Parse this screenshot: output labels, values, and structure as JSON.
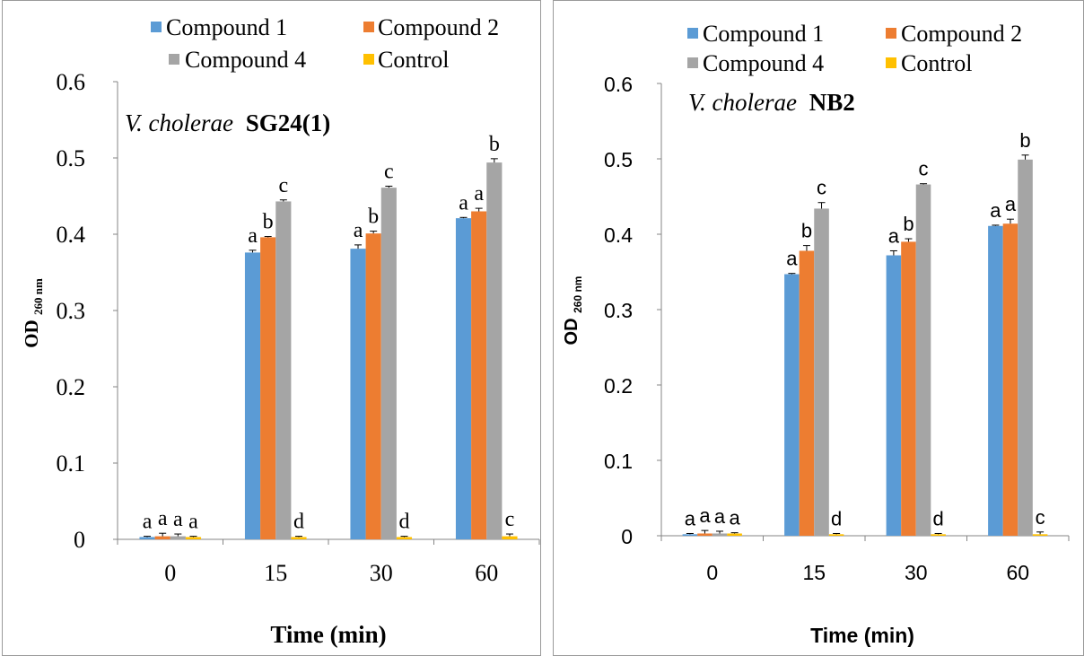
{
  "chart_data": [
    {
      "type": "bar",
      "title_italic": "V. cholerae",
      "title_bold": "SG24(1)",
      "xlabel": "Time (min)",
      "ylabel_main": "OD",
      "ylabel_sub": "260 nm",
      "categories": [
        "0",
        "15",
        "30",
        "60"
      ],
      "ylim": [
        0,
        0.6
      ],
      "yticks": [
        "0",
        "0.1",
        "0.2",
        "0.3",
        "0.4",
        "0.5",
        "0.6"
      ],
      "grid": false,
      "legend_position": "top",
      "series": [
        {
          "name": "Compound 1",
          "color": "#5b9bd5",
          "values": [
            0.003,
            0.376,
            0.381,
            0.421
          ],
          "errors": [
            0.001,
            0.003,
            0.005,
            0.001
          ],
          "letters": [
            "a",
            "a",
            "a",
            "a"
          ]
        },
        {
          "name": "Compound 2",
          "color": "#ed7d31",
          "values": [
            0.004,
            0.396,
            0.401,
            0.43
          ],
          "errors": [
            0.004,
            0.001,
            0.003,
            0.004
          ],
          "letters": [
            "a",
            "b",
            "b",
            "a"
          ]
        },
        {
          "name": "Compound 4",
          "color": "#a5a5a5",
          "values": [
            0.004,
            0.443,
            0.461,
            0.494
          ],
          "errors": [
            0.003,
            0.002,
            0.002,
            0.005
          ],
          "letters": [
            "a",
            "c",
            "c",
            "b"
          ]
        },
        {
          "name": "Control",
          "color": "#ffc000",
          "values": [
            0.003,
            0.003,
            0.003,
            0.004
          ],
          "errors": [
            0.001,
            0.001,
            0.001,
            0.003
          ],
          "letters": [
            "a",
            "d",
            "d",
            "c"
          ]
        }
      ]
    },
    {
      "type": "bar",
      "title_italic": "V. cholerae",
      "title_bold": "NB2",
      "xlabel": "Time (min)",
      "ylabel_main": "OD",
      "ylabel_sub": "260 nm",
      "categories": [
        "0",
        "15",
        "30",
        "60"
      ],
      "ylim": [
        0,
        0.6
      ],
      "yticks": [
        "0",
        "0.1",
        "0.2",
        "0.3",
        "0.4",
        "0.5",
        "0.6"
      ],
      "grid": false,
      "legend_position": "top",
      "series": [
        {
          "name": "Compound 1",
          "color": "#5b9bd5",
          "values": [
            0.002,
            0.347,
            0.372,
            0.411
          ],
          "errors": [
            0.001,
            0.001,
            0.006,
            0.001
          ],
          "letters": [
            "a",
            "a",
            "a",
            "a"
          ]
        },
        {
          "name": "Compound 2",
          "color": "#ed7d31",
          "values": [
            0.003,
            0.378,
            0.39,
            0.414
          ],
          "errors": [
            0.004,
            0.007,
            0.004,
            0.006
          ],
          "letters": [
            "a",
            "b",
            "b",
            "a"
          ]
        },
        {
          "name": "Compound 4",
          "color": "#a5a5a5",
          "values": [
            0.003,
            0.434,
            0.466,
            0.499
          ],
          "errors": [
            0.003,
            0.008,
            0.001,
            0.006
          ],
          "letters": [
            "a",
            "c",
            "c",
            "b"
          ]
        },
        {
          "name": "Control",
          "color": "#ffc000",
          "values": [
            0.003,
            0.002,
            0.002,
            0.002
          ],
          "errors": [
            0.001,
            0.001,
            0.001,
            0.003
          ],
          "letters": [
            "a",
            "d",
            "d",
            "c"
          ]
        }
      ]
    }
  ]
}
